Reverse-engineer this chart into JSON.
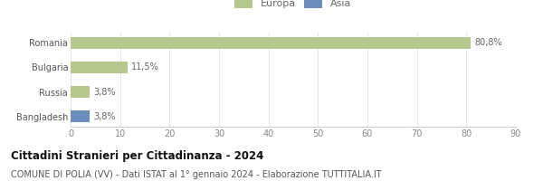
{
  "categories": [
    "Romania",
    "Bulgaria",
    "Russia",
    "Bangladesh"
  ],
  "values": [
    80.8,
    11.5,
    3.8,
    3.8
  ],
  "colors": [
    "#b5c98e",
    "#b5c98e",
    "#b5c98e",
    "#6b8ebf"
  ],
  "labels": [
    "80,8%",
    "11,5%",
    "3,8%",
    "3,8%"
  ],
  "legend_items": [
    {
      "label": "Europa",
      "color": "#b5c98e"
    },
    {
      "label": "Asia",
      "color": "#6b8ebf"
    }
  ],
  "xlim": [
    0,
    90
  ],
  "xticks": [
    0,
    10,
    20,
    30,
    40,
    50,
    60,
    70,
    80,
    90
  ],
  "title_bold": "Cittadini Stranieri per Cittadinanza - 2024",
  "subtitle": "COMUNE DI POLIA (VV) - Dati ISTAT al 1° gennaio 2024 - Elaborazione TUTTITALIA.IT",
  "background_color": "#ffffff",
  "bar_height": 0.5,
  "title_fontsize": 8.5,
  "subtitle_fontsize": 7,
  "label_fontsize": 7,
  "tick_fontsize": 7,
  "legend_fontsize": 8
}
